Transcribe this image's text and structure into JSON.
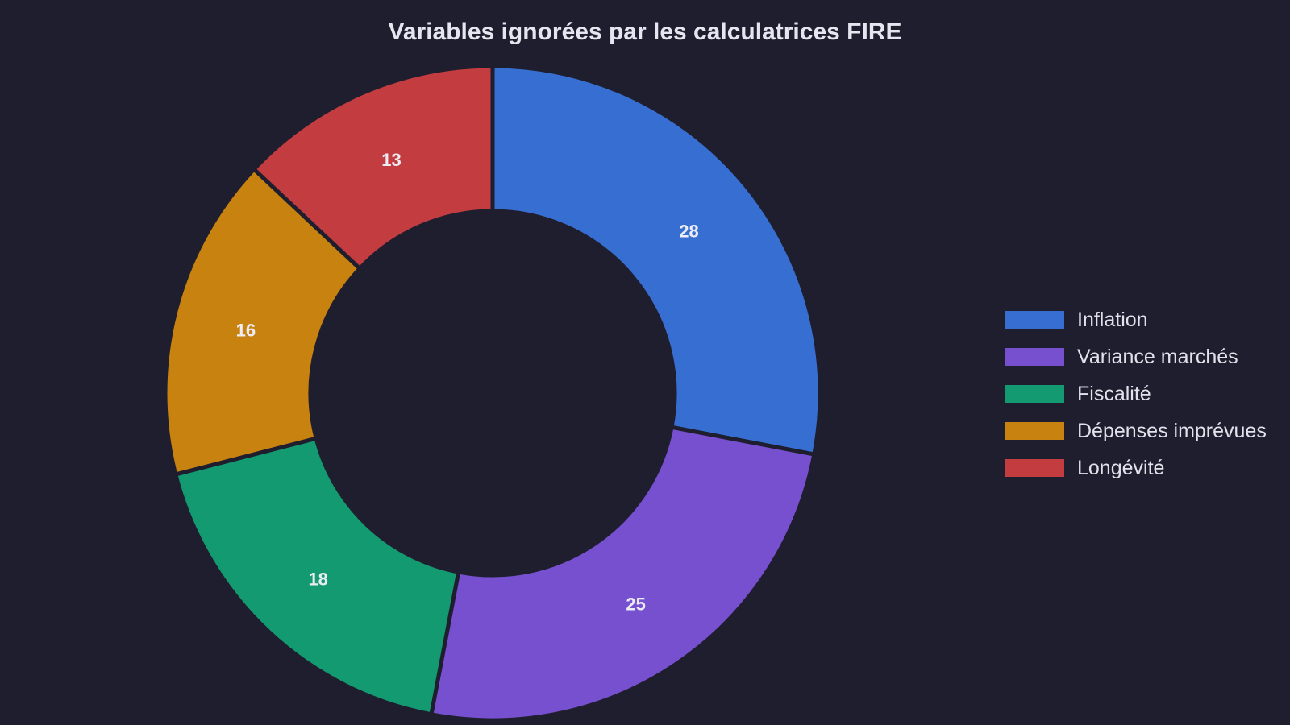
{
  "chart_data": {
    "type": "pie",
    "donut": true,
    "title": "Variables ignorées par les calculatrices FIRE",
    "categories": [
      "Inflation",
      "Variance marchés",
      "Fiscalité",
      "Dépenses imprévues",
      "Longévité"
    ],
    "values": [
      28,
      25,
      18,
      16,
      13
    ],
    "colors": [
      "#366ed1",
      "#7650cf",
      "#139a71",
      "#c8820f",
      "#c33c40"
    ],
    "data_labels": [
      "28",
      "25",
      "18",
      "16",
      "13"
    ],
    "start_angle": "12 o'clock",
    "direction": "clockwise",
    "legend_position": "right"
  }
}
